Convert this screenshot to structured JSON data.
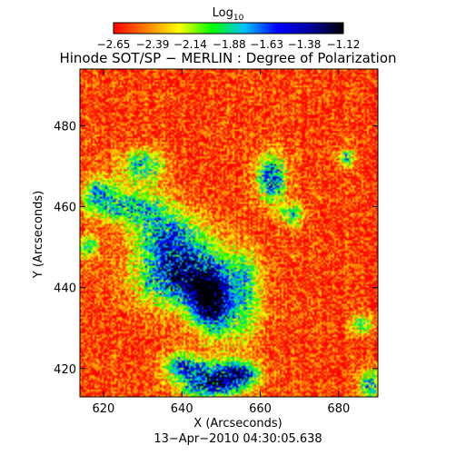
{
  "chart_data": {
    "type": "heatmap",
    "title": "Hinode SOT/SP − MERLIN : Degree of Polarization",
    "subtitle": "13−Apr−2010 04:30:05.638",
    "xlabel": "X (Arcseconds)",
    "ylabel": "Y (Arcseconds)",
    "xlim": [
      614,
      690
    ],
    "ylim": [
      413,
      494
    ],
    "x_ticks": [
      620,
      640,
      660,
      680
    ],
    "y_ticks": [
      420,
      440,
      460,
      480
    ],
    "x_tick_labels": [
      "620",
      "640",
      "660",
      "680"
    ],
    "y_tick_labels": [
      "420",
      "440",
      "460",
      "480"
    ],
    "colorbar": {
      "title_base": "Log",
      "title_sub": "10",
      "range": [
        -2.65,
        -1.12
      ],
      "tick_values": [
        -2.65,
        -2.39,
        -2.14,
        -1.88,
        -1.63,
        -1.38,
        -1.12
      ],
      "tick_labels": [
        "−2.65",
        "−2.39",
        "−2.14",
        "−1.88",
        "−1.63",
        "−1.38",
        "−1.12"
      ],
      "colormap": [
        "#ff0000",
        "#ff8000",
        "#ffff00",
        "#00ff00",
        "#00c0ff",
        "#0000ff",
        "#0000a0",
        "#000000"
      ]
    },
    "background_level": -2.55,
    "features": [
      {
        "x": 641,
        "y": 443,
        "sx": 8,
        "sy": 5,
        "peak": -1.25
      },
      {
        "x": 647,
        "y": 437,
        "sx": 3,
        "sy": 4,
        "peak": -1.3
      },
      {
        "x": 637,
        "y": 453,
        "sx": 6,
        "sy": 4,
        "peak": -1.75
      },
      {
        "x": 628,
        "y": 460,
        "sx": 6,
        "sy": 3,
        "peak": -1.85
      },
      {
        "x": 630,
        "y": 470,
        "sx": 4,
        "sy": 3,
        "peak": -1.9
      },
      {
        "x": 619,
        "y": 463,
        "sx": 3,
        "sy": 3,
        "peak": -1.85
      },
      {
        "x": 616,
        "y": 450,
        "sx": 2,
        "sy": 2,
        "peak": -1.95
      },
      {
        "x": 648,
        "y": 417,
        "sx": 6,
        "sy": 3,
        "peak": -1.3
      },
      {
        "x": 640,
        "y": 421,
        "sx": 3,
        "sy": 2,
        "peak": -1.8
      },
      {
        "x": 655,
        "y": 419,
        "sx": 3,
        "sy": 2,
        "peak": -1.85
      },
      {
        "x": 663,
        "y": 467,
        "sx": 2.5,
        "sy": 4,
        "peak": -1.55
      },
      {
        "x": 668,
        "y": 458,
        "sx": 2,
        "sy": 2,
        "peak": -1.9
      },
      {
        "x": 682,
        "y": 472,
        "sx": 1.5,
        "sy": 1.5,
        "peak": -1.85
      },
      {
        "x": 688,
        "y": 416,
        "sx": 2,
        "sy": 3,
        "peak": -1.8
      },
      {
        "x": 686,
        "y": 431,
        "sx": 2,
        "sy": 2,
        "peak": -2.0
      },
      {
        "x": 651,
        "y": 432,
        "sx": 6,
        "sy": 5,
        "peak": -2.1
      },
      {
        "x": 656,
        "y": 441,
        "sx": 3,
        "sy": 6,
        "peak": -2.1
      }
    ]
  }
}
